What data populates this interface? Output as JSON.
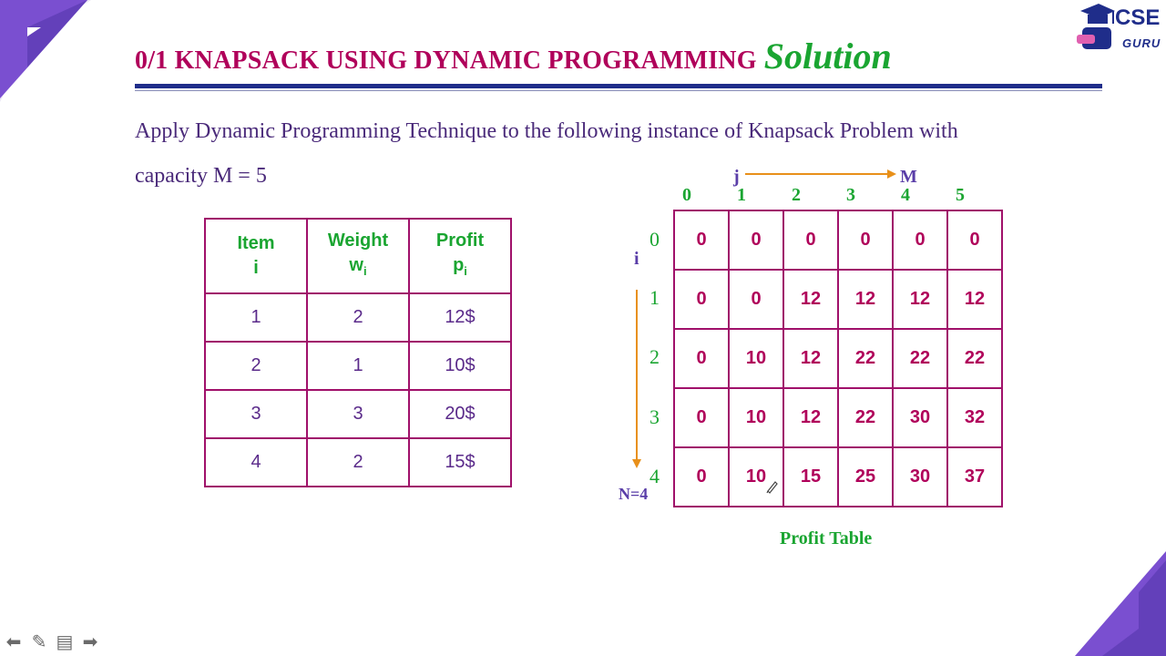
{
  "slide": {
    "title": "0/1 KNAPSACK USING DYNAMIC PROGRAMMING",
    "title_suffix": "Solution",
    "problem_line1": "Apply Dynamic Programming Technique to the following instance of Knapsack Problem with",
    "problem_line2": "capacity M = 5"
  },
  "items_table": {
    "headers": [
      {
        "label": "Item",
        "sub": "i",
        "sub_subscript": ""
      },
      {
        "label": "Weight",
        "sub": "w",
        "sub_subscript": "i"
      },
      {
        "label": "Profit",
        "sub": "p",
        "sub_subscript": "i"
      }
    ],
    "rows": [
      [
        "1",
        "2",
        "12$"
      ],
      [
        "2",
        "1",
        "10$"
      ],
      [
        "3",
        "3",
        "20$"
      ],
      [
        "4",
        "2",
        "15$"
      ]
    ]
  },
  "profit_table": {
    "j_label": "j",
    "m_label": "M",
    "i_label": "i",
    "n_label": "N=4",
    "col_indices": [
      "0",
      "1",
      "2",
      "3",
      "4",
      "5"
    ],
    "row_indices": [
      "0",
      "1",
      "2",
      "3",
      "4"
    ],
    "cells": [
      [
        "0",
        "0",
        "0",
        "0",
        "0",
        "0"
      ],
      [
        "0",
        "0",
        "12",
        "12",
        "12",
        "12"
      ],
      [
        "0",
        "10",
        "12",
        "22",
        "22",
        "22"
      ],
      [
        "0",
        "10",
        "12",
        "22",
        "30",
        "32"
      ],
      [
        "0",
        "10",
        "15",
        "25",
        "30",
        "37"
      ]
    ],
    "caption": "Profit Table"
  },
  "logo": {
    "text": "CSE",
    "subtext": "GURU"
  },
  "colors": {
    "title": "#b0005a",
    "accent_green": "#1aa531",
    "rule": "#1f2d8a",
    "corner": "#6a3ec8"
  },
  "nav_icons": [
    "arrow-left-icon",
    "pen-icon",
    "notes-icon",
    "arrow-right-icon"
  ]
}
